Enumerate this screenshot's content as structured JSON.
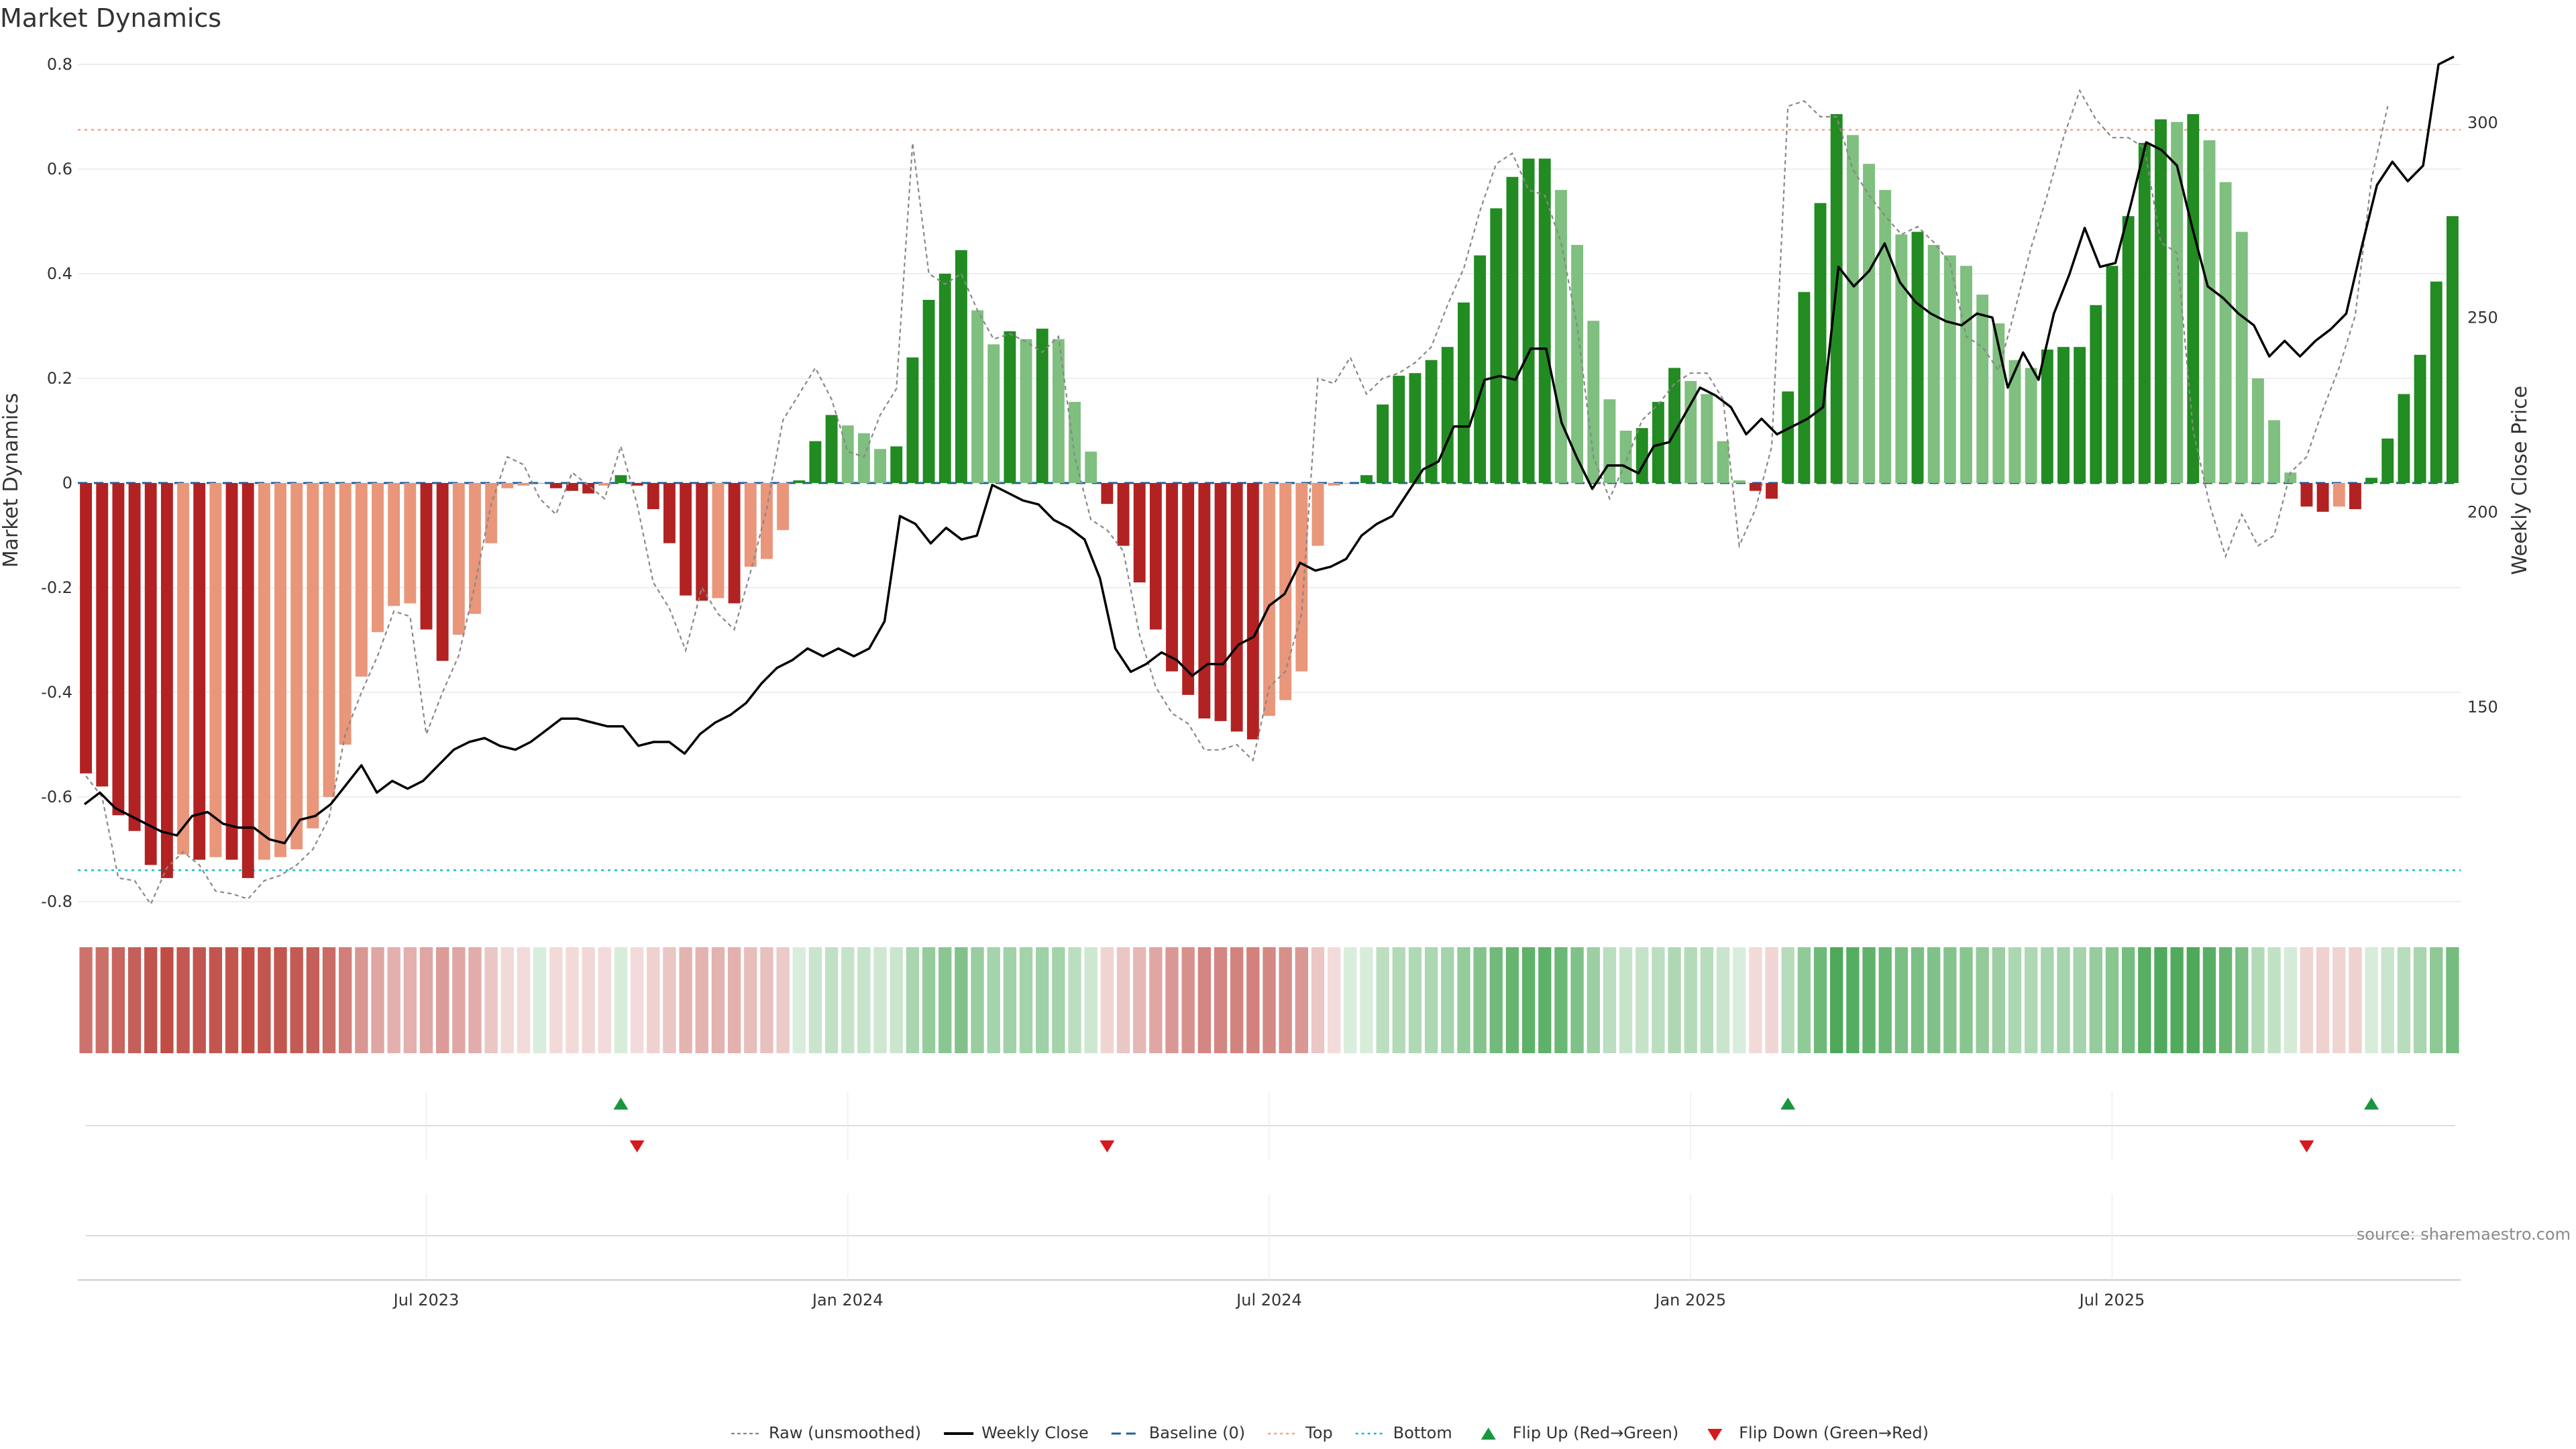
{
  "chart_data": {
    "type": "bar",
    "title": "Market Dynamics",
    "ylabel": "Market Dynamics",
    "y2label": "Weekly Close Price",
    "ylim": [
      -0.8,
      0.8
    ],
    "y2lim": [
      100,
      315
    ],
    "yticks": [
      "0.8",
      "0.6",
      "0.4",
      "0.2",
      "0",
      "-0.2",
      "-0.4",
      "-0.6",
      "-0.8"
    ],
    "y2ticks": [
      "300",
      "250",
      "200",
      "150"
    ],
    "x_ticks": [
      "Jul 2023",
      "Jan 2024",
      "Jul 2024",
      "Jan 2025",
      "Jul 2025"
    ],
    "source": "source: sharemaestro.com",
    "top_level": 0.675,
    "bottom_level": -0.74,
    "colors": {
      "strong_red": "#b22222",
      "weak_red": "#e9967a",
      "strong_green": "#228b22",
      "weak_green": "#7fbf7f",
      "price": "#000000",
      "raw": "#888888",
      "baseline": "#1f5f9f",
      "top": "#f4a582",
      "bottom": "#17becf",
      "flip_up": "#1a9641",
      "flip_down": "#d7191c"
    },
    "bars": [
      -0.555,
      -0.58,
      -0.635,
      -0.665,
      -0.73,
      -0.755,
      -0.71,
      -0.72,
      -0.715,
      -0.72,
      -0.755,
      -0.72,
      -0.715,
      -0.7,
      -0.66,
      -0.6,
      -0.5,
      -0.37,
      -0.285,
      -0.235,
      -0.23,
      -0.28,
      -0.34,
      -0.29,
      -0.25,
      -0.115,
      -0.01,
      -0.005,
      0,
      -0.01,
      -0.015,
      -0.02,
      -0.005,
      0.015,
      -0.005,
      -0.05,
      -0.115,
      -0.215,
      -0.225,
      -0.22,
      -0.23,
      -0.16,
      -0.145,
      -0.09,
      0.005,
      0.08,
      0.13,
      0.11,
      0.095,
      0.065,
      0.07,
      0.24,
      0.35,
      0.4,
      0.445,
      0.33,
      0.265,
      0.29,
      0.275,
      0.295,
      0.275,
      0.155,
      0.06,
      -0.04,
      -0.12,
      -0.19,
      -0.28,
      -0.36,
      -0.405,
      -0.45,
      -0.455,
      -0.475,
      -0.49,
      -0.445,
      -0.415,
      -0.36,
      -0.12,
      -0.005,
      0,
      0.015,
      0.15,
      0.205,
      0.21,
      0.235,
      0.26,
      0.345,
      0.435,
      0.525,
      0.585,
      0.62,
      0.62,
      0.56,
      0.455,
      0.31,
      0.16,
      0.1,
      0.105,
      0.155,
      0.22,
      0.195,
      0.17,
      0.08,
      0.005,
      -0.015,
      -0.03,
      0.175,
      0.365,
      0.535,
      0.705,
      0.665,
      0.61,
      0.56,
      0.475,
      0.48,
      0.455,
      0.435,
      0.415,
      0.36,
      0.305,
      0.235,
      0.22,
      0.255,
      0.26,
      0.26,
      0.34,
      0.415,
      0.51,
      0.65,
      0.695,
      0.69,
      0.705,
      0.655,
      0.575,
      0.48,
      0.2,
      0.12,
      0.02,
      -0.045,
      -0.055,
      -0.045,
      -0.05,
      0.01,
      0.085,
      0.17,
      0.245,
      0.385,
      0.51
    ],
    "raw": [
      -0.56,
      -0.6,
      -0.755,
      -0.76,
      -0.805,
      -0.735,
      -0.705,
      -0.73,
      -0.78,
      -0.785,
      -0.795,
      -0.76,
      -0.75,
      -0.73,
      -0.7,
      -0.64,
      -0.48,
      -0.4,
      -0.33,
      -0.245,
      -0.255,
      -0.48,
      -0.4,
      -0.33,
      -0.195,
      -0.04,
      0.05,
      0.035,
      -0.03,
      -0.06,
      0.02,
      -0.005,
      -0.03,
      0.07,
      -0.04,
      -0.19,
      -0.24,
      -0.32,
      -0.2,
      -0.25,
      -0.28,
      -0.17,
      -0.05,
      0.12,
      0.17,
      0.22,
      0.16,
      0.06,
      0.05,
      0.13,
      0.18,
      0.65,
      0.4,
      0.38,
      0.4,
      0.33,
      0.275,
      0.285,
      0.27,
      0.25,
      0.28,
      0.05,
      -0.07,
      -0.09,
      -0.13,
      -0.29,
      -0.39,
      -0.44,
      -0.46,
      -0.51,
      -0.51,
      -0.5,
      -0.53,
      -0.39,
      -0.36,
      -0.25,
      0.2,
      0.19,
      0.24,
      0.17,
      0.2,
      0.21,
      0.23,
      0.26,
      0.34,
      0.41,
      0.52,
      0.61,
      0.63,
      0.56,
      0.55,
      0.46,
      0.3,
      0.05,
      -0.03,
      0.04,
      0.12,
      0.15,
      0.19,
      0.21,
      0.21,
      0.16,
      -0.12,
      -0.05,
      0.07,
      0.72,
      0.73,
      0.7,
      0.7,
      0.6,
      0.55,
      0.51,
      0.475,
      0.49,
      0.46,
      0.42,
      0.28,
      0.26,
      0.215,
      0.33,
      0.45,
      0.55,
      0.66,
      0.75,
      0.695,
      0.66,
      0.66,
      0.64,
      0.46,
      0.44,
      0.1,
      -0.04,
      -0.14,
      -0.06,
      -0.12,
      -0.1,
      0.02,
      0.05,
      0.14,
      0.22,
      0.32,
      0.58,
      0.72
    ],
    "price": [
      125,
      128,
      124,
      122,
      120,
      118,
      117,
      122,
      123,
      120,
      119,
      119,
      116,
      115,
      121,
      122,
      125,
      130,
      135,
      128,
      131,
      129,
      131,
      135,
      139,
      141,
      142,
      140,
      139,
      141,
      144,
      147,
      147,
      146,
      145,
      145,
      140,
      141,
      141,
      138,
      143,
      146,
      148,
      151,
      156,
      160,
      162,
      165,
      163,
      165,
      163,
      165,
      172,
      199,
      197,
      192,
      196,
      193,
      194,
      207,
      205,
      203,
      202,
      198,
      196,
      193,
      183,
      165,
      159,
      161,
      164,
      162,
      158,
      161,
      161,
      166,
      168,
      176,
      179,
      187,
      185,
      186,
      188,
      194,
      197,
      199,
      205,
      211,
      213,
      222,
      222,
      234,
      235,
      234,
      242,
      242,
      223,
      214,
      206,
      212,
      212,
      210,
      217,
      218,
      225,
      232,
      230,
      227,
      220,
      224,
      220,
      222,
      224,
      227,
      263,
      258,
      262,
      269,
      259,
      254,
      251,
      249,
      248,
      251,
      250,
      232,
      241,
      234,
      251,
      261,
      273,
      263,
      264,
      279,
      295,
      293,
      289,
      273,
      258,
      255,
      251,
      248,
      240,
      244,
      240,
      244,
      247,
      251,
      268,
      284,
      290,
      285,
      289,
      315,
      317
    ]
  },
  "legend": [
    {
      "key": "raw",
      "label": "Raw (unsmoothed)"
    },
    {
      "key": "price",
      "label": "Weekly Close"
    },
    {
      "key": "baseline",
      "label": "Baseline (0)"
    },
    {
      "key": "top",
      "label": "Top"
    },
    {
      "key": "bottom",
      "label": "Bottom"
    },
    {
      "key": "flip_up",
      "label": "Flip Up (Red→Green)"
    },
    {
      "key": "flip_down",
      "label": "Flip Down (Green→Red)"
    }
  ]
}
